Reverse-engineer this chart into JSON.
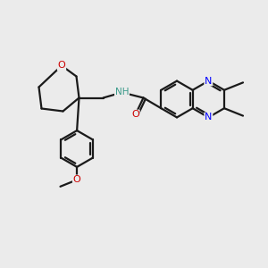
{
  "bg_color": "#ebebeb",
  "bond_color": "#1a1a1a",
  "N_color": "#0000ff",
  "O_color": "#cc0000",
  "NH_color": "#3a9a8a",
  "lw": 1.6,
  "figsize": [
    3.0,
    3.0
  ],
  "dpi": 100,
  "xlim": [
    0,
    10
  ],
  "ylim": [
    0,
    10
  ]
}
